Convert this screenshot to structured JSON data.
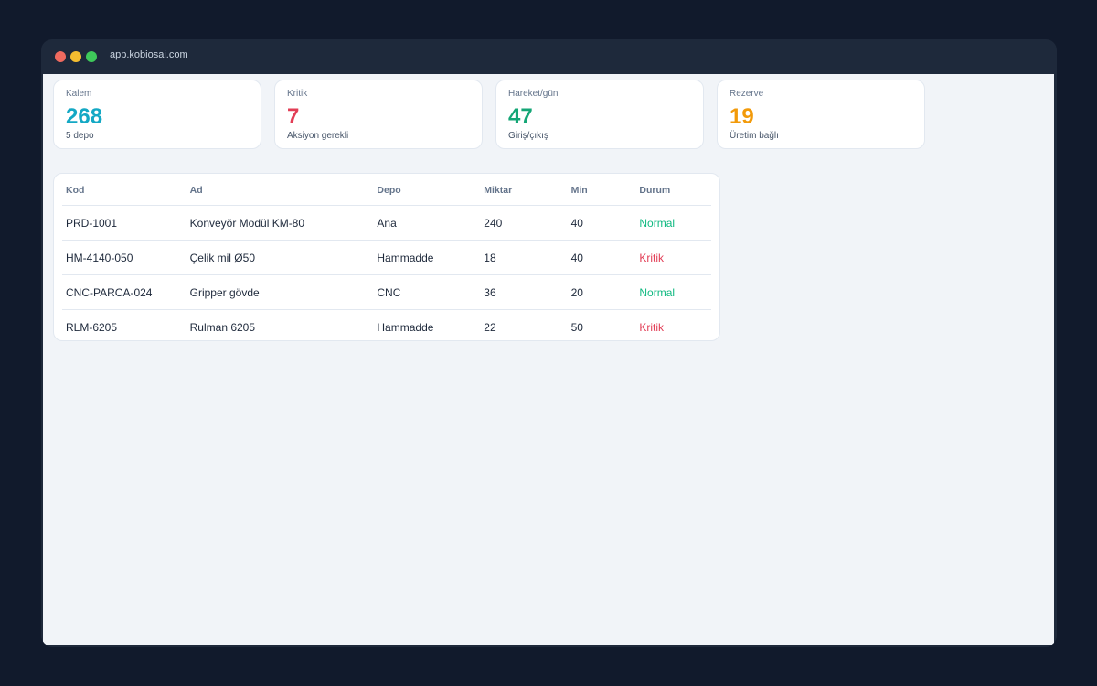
{
  "browser": {
    "url": "app.kobiosai.com"
  },
  "cards": [
    {
      "label": "Kalem",
      "value": "268",
      "sub": "5 depo"
    },
    {
      "label": "Kritik",
      "value": "7",
      "sub": "Aksiyon gerekli"
    },
    {
      "label": "Hareket/gün",
      "value": "47",
      "sub": "Giriş/çıkış"
    },
    {
      "label": "Rezerve",
      "value": "19",
      "sub": "Üretim bağlı"
    }
  ],
  "table": {
    "headers": [
      "Kod",
      "Ad",
      "Depo",
      "Miktar",
      "Min",
      "Durum"
    ],
    "rows": [
      [
        "PRD-1001",
        "Konveyör Modül KM-80",
        "Ana",
        "240",
        "40",
        "Normal"
      ],
      [
        "HM-4140-050",
        "Çelik mil Ø50",
        "Hammadde",
        "18",
        "40",
        "Kritik"
      ],
      [
        "CNC-PARCA-024",
        "Gripper gövde",
        "CNC",
        "36",
        "20",
        "Normal"
      ],
      [
        "RLM-6205",
        "Rulman 6205",
        "Hammadde",
        "22",
        "50",
        "Kritik"
      ]
    ]
  }
}
